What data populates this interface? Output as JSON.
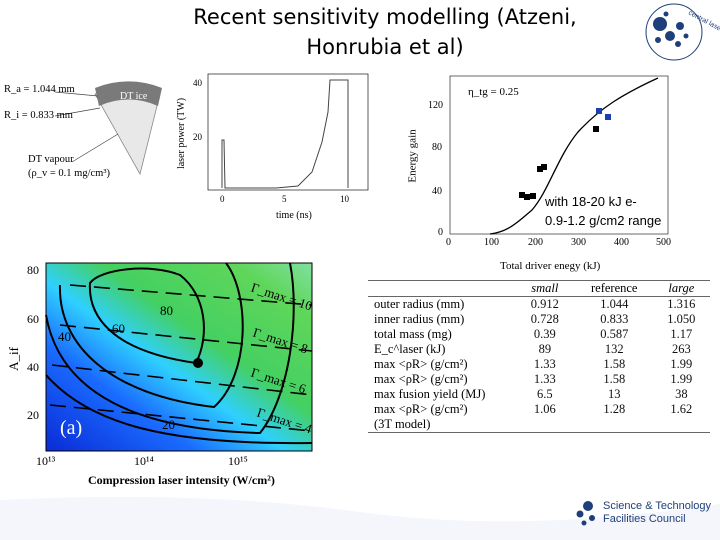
{
  "title_line1": "Recent sensitivity modelling (Atzeni,",
  "title_line2": "Honrubia et al)",
  "target_diagram": {
    "Ra": "R_a = 1.044 mm",
    "Ri": "R_i = 0.833 mm",
    "ice": "DT ice",
    "vapour": "DT vapour",
    "rho": "(ρ_v = 0.1 mg/cm³)"
  },
  "pulse_plot": {
    "ylabel": "laser power (TW)",
    "xlabel": "time (ns)",
    "yticks": [
      "40",
      "20"
    ],
    "xticks": [
      "0",
      "5",
      "10"
    ]
  },
  "gain_plot": {
    "eta_label": "η_tg = 0.25",
    "ylabel": "Energy gain",
    "xlabel": "Total driver enegy (kJ)",
    "yticks": [
      "0",
      "40",
      "80",
      "120"
    ],
    "xticks": [
      "0",
      "100",
      "200",
      "300",
      "400",
      "500"
    ]
  },
  "note_line1": "with 18-20 kJ e-",
  "note_line2": "0.9-1.2 g/cm2 range",
  "contour_plot": {
    "ylabel": "A_if",
    "xlabel": "Compression laser intensity (W/cm²)",
    "yticks": [
      "20",
      "40",
      "60",
      "80"
    ],
    "xticks": [
      "10¹³",
      "10¹⁴",
      "10¹⁵"
    ],
    "contours": [
      "20",
      "40",
      "60",
      "80"
    ],
    "gammas": [
      "Γ_max = 10",
      "Γ_max = 8",
      "Γ_max = 6",
      "Γ_max = 4"
    ],
    "panel": "(a)"
  },
  "table": {
    "headers": [
      "",
      "small",
      "reference",
      "large"
    ],
    "rows": [
      [
        "outer radius (mm)",
        "0.912",
        "1.044",
        "1.316"
      ],
      [
        "inner radius (mm)",
        "0.728",
        "0.833",
        "1.050"
      ],
      [
        "total mass (mg)",
        "0.39",
        "0.587",
        "1.17"
      ],
      [
        "E_c^laser (kJ)",
        "89",
        "132",
        "263"
      ],
      [
        "max <ρR> (g/cm²)",
        "1.33",
        "1.58",
        "1.99"
      ],
      [
        "max <ρR> (g/cm²)",
        "1.33",
        "1.58",
        "1.99"
      ],
      [
        "max fusion yield (MJ)",
        "6.5",
        "13",
        "38"
      ],
      [
        "max <ρR> (g/cm²)",
        "1.06",
        "1.28",
        "1.62"
      ],
      [
        "(3T model)",
        "",
        "",
        ""
      ]
    ]
  },
  "footer": {
    "org_line1": "Science & Technology",
    "org_line2": "Facilities Council",
    "logo_text": "central laser facility"
  },
  "colors": {
    "accent": "#1f3f7a",
    "blue_points": "#1e3cb4",
    "contour_green": "#44d062",
    "contour_blue": "#1a6bff"
  }
}
